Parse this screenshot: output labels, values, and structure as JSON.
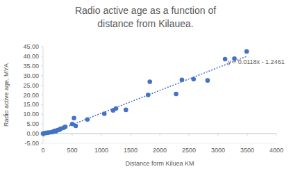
{
  "chart_data": {
    "type": "scatter",
    "title": "Radio active age as a function of distance from Kilauea.",
    "x_label": "Distance form Kiluea KM",
    "y_label": "Radio active age, MYA",
    "annotation": "y = 0.0118x - 1.2461",
    "xlim": [
      0,
      4000
    ],
    "xticks": [
      0,
      500,
      1000,
      1500,
      2000,
      2500,
      3000,
      3500,
      4000
    ],
    "ylim": [
      -5,
      45
    ],
    "yticks": [
      {
        "value": -5,
        "label": "-5.00"
      },
      {
        "value": 0,
        "label": "0.00"
      },
      {
        "value": 5,
        "label": "5.00"
      },
      {
        "value": 10,
        "label": "10.00"
      },
      {
        "value": 15,
        "label": "15.00"
      },
      {
        "value": 20,
        "label": "20.00"
      },
      {
        "value": 25,
        "label": "25.00"
      },
      {
        "value": 30,
        "label": "30.00"
      },
      {
        "value": 35,
        "label": "35.00"
      },
      {
        "value": 40,
        "label": "40.00"
      },
      {
        "value": 45,
        "label": "45.00"
      }
    ],
    "grid": false,
    "series": [
      {
        "type": "scatter",
        "marker": "circle",
        "color": "#4472c4",
        "x": [
          0,
          20,
          50,
          80,
          100,
          150,
          180,
          200,
          220,
          250,
          280,
          300,
          350,
          380,
          500,
          530,
          560,
          760,
          1050,
          1200,
          1250,
          1420,
          1800,
          1830,
          2280,
          2380,
          2580,
          2820,
          3120,
          3280,
          3490
        ],
        "values": [
          0,
          0.2,
          0.4,
          0.5,
          0.6,
          0.8,
          1.0,
          1.5,
          1.2,
          1.8,
          2.0,
          2.5,
          3.0,
          3.5,
          5.0,
          8.0,
          4.0,
          7.3,
          10.3,
          12.0,
          13.0,
          12.3,
          20.0,
          26.8,
          20.5,
          27.8,
          28.2,
          27.5,
          38.5,
          38.8,
          42.5
        ]
      },
      {
        "type": "line",
        "marker": "none",
        "line_style": "dotted",
        "color": "#4472c4",
        "x": [
          0,
          3500
        ],
        "values": [
          -1.25,
          40.05
        ]
      }
    ]
  }
}
